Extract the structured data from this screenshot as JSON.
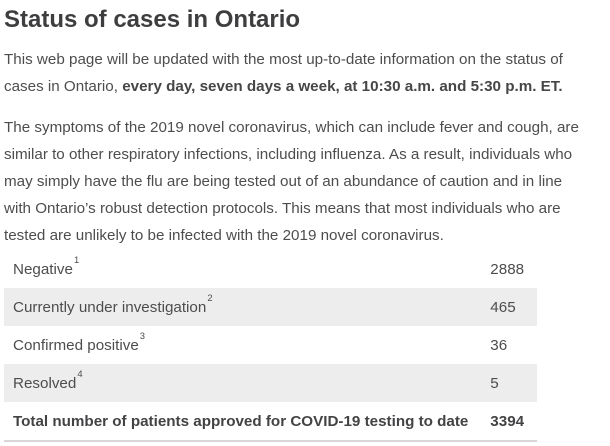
{
  "page": {
    "title": "Status of cases in Ontario"
  },
  "intro": {
    "normal": "This web page will be updated with the most up-to-date information on the status of cases in Ontario, ",
    "bold": "every day, seven days a week, at 10:30 a.m. and 5:30 p.m. ET."
  },
  "symptoms": {
    "text": "The symptoms of the 2019 novel coronavirus, which can include fever and cough, are similar to other respiratory infections, including influenza. As a result, individuals who may simply have the flu are being tested out of an abundance of caution and in line with Ontario’s robust detection protocols. This means that most individuals who are tested are unlikely to be infected with the 2019 novel coronavirus."
  },
  "status_table": {
    "rows": [
      {
        "label": "Negative",
        "footnote": "1",
        "value": "2888"
      },
      {
        "label": "Currently under investigation",
        "footnote": "2",
        "value": "465"
      },
      {
        "label": "Confirmed positive",
        "footnote": "3",
        "value": "36"
      },
      {
        "label": "Resolved",
        "footnote": "4",
        "value": "5"
      }
    ],
    "total": {
      "label": "Total number of patients approved for COVID-19 testing to date",
      "value": "3394"
    },
    "colors": {
      "striped_row_bg": "#ededed",
      "bottom_border": "#d7d7d7"
    }
  }
}
